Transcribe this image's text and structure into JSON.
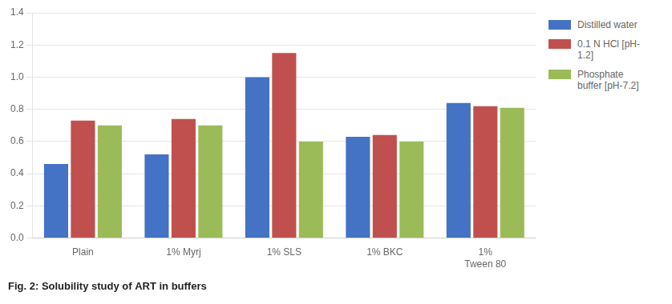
{
  "chart_data": {
    "type": "bar",
    "title": "Fig. 2: Solubility study of ART in buffers",
    "categories": [
      "Plain",
      "1% Myrj",
      "1% SLS",
      "1% BKC",
      "1%\nTween 80"
    ],
    "series": [
      {
        "name": "Distilled water",
        "color": "#4472C4",
        "values": [
          0.46,
          0.52,
          1.0,
          0.63,
          0.84
        ]
      },
      {
        "name": "0.1 N HCl [pH-\n1.2]",
        "color": "#C0504D",
        "values": [
          0.73,
          0.74,
          1.15,
          0.64,
          0.82
        ]
      },
      {
        "name": "Phosphate\nbuffer [pH-7.2]",
        "color": "#9BBB59",
        "values": [
          0.7,
          0.7,
          0.6,
          0.6,
          0.81
        ]
      }
    ],
    "ylim": [
      0,
      1.4
    ],
    "yticks": [
      {
        "value": 0,
        "label": "0.0"
      },
      0.2,
      0.4,
      0.6,
      0.8,
      {
        "value": 1,
        "label": "1.0"
      },
      1.2,
      1.4
    ],
    "grid": true,
    "legend": "right"
  }
}
